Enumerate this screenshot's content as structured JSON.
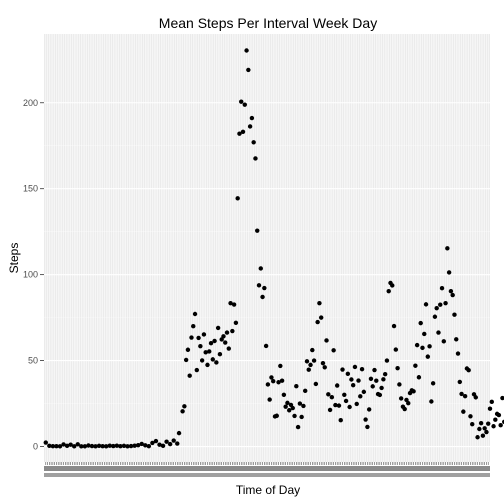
{
  "chart_data": {
    "type": "scatter",
    "title": "Mean Steps Per Interval Week Day",
    "xlabel": "Time of Day",
    "ylabel": "Steps",
    "y_ticks": [
      0,
      50,
      100,
      150,
      200
    ],
    "ylim": [
      -9,
      240
    ],
    "x_tick_labels_legible": false,
    "grid": true,
    "point_color": "#000000",
    "panel_background": "#ebebeb",
    "gridline_color": "#ffffff",
    "x_unit": "interval index (5-minute intervals, 0-287)",
    "points": [
      [
        0,
        2.3
      ],
      [
        2,
        0.4
      ],
      [
        4,
        0.2
      ],
      [
        6,
        0.2
      ],
      [
        8,
        0.1
      ],
      [
        10,
        1.2
      ],
      [
        12,
        0.4
      ],
      [
        14,
        1.1
      ],
      [
        16,
        0.1
      ],
      [
        18,
        1.3
      ],
      [
        20,
        0.1
      ],
      [
        22,
        0.1
      ],
      [
        24,
        0.6
      ],
      [
        26,
        0.3
      ],
      [
        28,
        0.1
      ],
      [
        30,
        0.4
      ],
      [
        32,
        0.2
      ],
      [
        34,
        0.1
      ],
      [
        36,
        0.5
      ],
      [
        38,
        0.3
      ],
      [
        40,
        0.5
      ],
      [
        42,
        0.2
      ],
      [
        44,
        0.4
      ],
      [
        46,
        0.1
      ],
      [
        48,
        0.3
      ],
      [
        50,
        0.5
      ],
      [
        52,
        0.8
      ],
      [
        54,
        1.5
      ],
      [
        56,
        0.7
      ],
      [
        58,
        0.2
      ],
      [
        60,
        2.1
      ],
      [
        62,
        3.2
      ],
      [
        64,
        1.1
      ],
      [
        66,
        0.4
      ],
      [
        68,
        2.8
      ],
      [
        70,
        1.4
      ],
      [
        72,
        3.5
      ],
      [
        74,
        1.7
      ],
      [
        75,
        7.8
      ],
      [
        77,
        20.5
      ],
      [
        78,
        23.4
      ],
      [
        79,
        50.4
      ],
      [
        80,
        56.3
      ],
      [
        81,
        41.2
      ],
      [
        82,
        63.4
      ],
      [
        83,
        70.0
      ],
      [
        84,
        77.1
      ],
      [
        85,
        44.5
      ],
      [
        86,
        63.2
      ],
      [
        87,
        58.4
      ],
      [
        88,
        50.1
      ],
      [
        89,
        65.2
      ],
      [
        90,
        54.8
      ],
      [
        91,
        47.5
      ],
      [
        92,
        55.3
      ],
      [
        93,
        60.1
      ],
      [
        94,
        50.7
      ],
      [
        95,
        61.4
      ],
      [
        96,
        48.9
      ],
      [
        97,
        69.0
      ],
      [
        98,
        53.7
      ],
      [
        99,
        62.3
      ],
      [
        100,
        64.1
      ],
      [
        101,
        60.5
      ],
      [
        102,
        66.3
      ],
      [
        103,
        57.0
      ],
      [
        104,
        83.4
      ],
      [
        105,
        67.2
      ],
      [
        106,
        82.6
      ],
      [
        107,
        72.0
      ],
      [
        108,
        144.4
      ],
      [
        109,
        182.0
      ],
      [
        110,
        200.6
      ],
      [
        111,
        183.1
      ],
      [
        112,
        198.9
      ],
      [
        113,
        230.4
      ],
      [
        114,
        219.1
      ],
      [
        115,
        186.2
      ],
      [
        116,
        191.1
      ],
      [
        117,
        177.0
      ],
      [
        118,
        167.6
      ],
      [
        119,
        125.6
      ],
      [
        120,
        93.8
      ],
      [
        121,
        103.6
      ],
      [
        122,
        87.0
      ],
      [
        123,
        92.2
      ],
      [
        124,
        58.5
      ],
      [
        125,
        36.1
      ],
      [
        126,
        27.3
      ],
      [
        127,
        40.2
      ],
      [
        128,
        38.0
      ],
      [
        129,
        17.5
      ],
      [
        130,
        17.9
      ],
      [
        131,
        37.4
      ],
      [
        132,
        46.9
      ],
      [
        133,
        38.3
      ],
      [
        134,
        30.1
      ],
      [
        135,
        23.2
      ],
      [
        136,
        25.4
      ],
      [
        137,
        21.1
      ],
      [
        138,
        24.2
      ],
      [
        139,
        22.4
      ],
      [
        140,
        17.8
      ],
      [
        141,
        35.1
      ],
      [
        142,
        11.3
      ],
      [
        143,
        25.0
      ],
      [
        144,
        17.2
      ],
      [
        145,
        23.6
      ],
      [
        146,
        32.4
      ],
      [
        147,
        49.6
      ],
      [
        148,
        44.7
      ],
      [
        149,
        47.5
      ],
      [
        150,
        56.1
      ],
      [
        151,
        50.0
      ],
      [
        152,
        36.4
      ],
      [
        153,
        72.4
      ],
      [
        154,
        83.4
      ],
      [
        155,
        75.0
      ],
      [
        156,
        48.5
      ],
      [
        157,
        46.1
      ],
      [
        158,
        61.7
      ],
      [
        159,
        30.4
      ],
      [
        160,
        21.3
      ],
      [
        161,
        28.7
      ],
      [
        162,
        56.0
      ],
      [
        163,
        24.1
      ],
      [
        164,
        35.5
      ],
      [
        165,
        23.8
      ],
      [
        166,
        15.3
      ],
      [
        167,
        44.8
      ],
      [
        168,
        30.1
      ],
      [
        169,
        26.5
      ],
      [
        170,
        42.3
      ],
      [
        171,
        23.0
      ],
      [
        172,
        39.0
      ],
      [
        173,
        35.7
      ],
      [
        174,
        46.3
      ],
      [
        175,
        24.8
      ],
      [
        176,
        38.4
      ],
      [
        177,
        29.2
      ],
      [
        178,
        45.0
      ],
      [
        179,
        31.8
      ],
      [
        180,
        15.7
      ],
      [
        181,
        11.4
      ],
      [
        182,
        21.6
      ],
      [
        183,
        39.4
      ],
      [
        184,
        35.0
      ],
      [
        185,
        44.5
      ],
      [
        186,
        38.3
      ],
      [
        187,
        30.5
      ],
      [
        188,
        30.0
      ],
      [
        189,
        34.1
      ],
      [
        190,
        39.1
      ],
      [
        191,
        42.1
      ],
      [
        192,
        50.0
      ],
      [
        193,
        90.4
      ],
      [
        194,
        95.2
      ],
      [
        195,
        93.7
      ],
      [
        196,
        70.1
      ],
      [
        197,
        56.4
      ],
      [
        198,
        45.6
      ],
      [
        199,
        36.1
      ],
      [
        200,
        28.0
      ],
      [
        201,
        23.2
      ],
      [
        202,
        21.8
      ],
      [
        203,
        27.1
      ],
      [
        204,
        25.2
      ],
      [
        205,
        31.1
      ],
      [
        206,
        32.7
      ],
      [
        207,
        32.1
      ],
      [
        208,
        47.0
      ],
      [
        209,
        59.0
      ],
      [
        210,
        40.3
      ],
      [
        211,
        71.8
      ],
      [
        212,
        57.4
      ],
      [
        213,
        65.5
      ],
      [
        214,
        82.7
      ],
      [
        215,
        52.3
      ],
      [
        216,
        58.3
      ],
      [
        217,
        26.2
      ],
      [
        218,
        36.8
      ],
      [
        219,
        75.5
      ],
      [
        220,
        80.5
      ],
      [
        221,
        66.3
      ],
      [
        222,
        82.5
      ],
      [
        223,
        92.1
      ],
      [
        224,
        61.2
      ],
      [
        225,
        83.4
      ],
      [
        226,
        115.3
      ],
      [
        227,
        101.3
      ],
      [
        228,
        90.4
      ],
      [
        229,
        88.1
      ],
      [
        230,
        76.7
      ],
      [
        231,
        62.4
      ],
      [
        232,
        54.1
      ],
      [
        233,
        37.6
      ],
      [
        234,
        30.6
      ],
      [
        235,
        20.3
      ],
      [
        236,
        29.3
      ],
      [
        237,
        45.4
      ],
      [
        238,
        44.4
      ],
      [
        239,
        17.6
      ],
      [
        240,
        13.0
      ],
      [
        241,
        30.4
      ],
      [
        242,
        28.6
      ],
      [
        243,
        5.4
      ],
      [
        244,
        10.2
      ],
      [
        245,
        13.6
      ],
      [
        246,
        6.3
      ],
      [
        247,
        10.6
      ],
      [
        248,
        8.4
      ],
      [
        249,
        13.3
      ],
      [
        250,
        22.0
      ],
      [
        251,
        26.0
      ],
      [
        252,
        11.8
      ],
      [
        253,
        15.6
      ],
      [
        254,
        19.0
      ],
      [
        255,
        18.3
      ],
      [
        256,
        12.4
      ],
      [
        257,
        28.2
      ],
      [
        258,
        14.4
      ],
      [
        259,
        13.5
      ],
      [
        260,
        17.2
      ],
      [
        261,
        9.2
      ],
      [
        262,
        6.0
      ],
      [
        263,
        3.4
      ],
      [
        264,
        1.2
      ],
      [
        265,
        6.8
      ],
      [
        266,
        10.4
      ],
      [
        267,
        9.0
      ],
      [
        268,
        12.0
      ],
      [
        269,
        3.1
      ],
      [
        270,
        0.4
      ],
      [
        271,
        2.3
      ],
      [
        272,
        3.1
      ],
      [
        273,
        0.5
      ],
      [
        274,
        3.6
      ],
      [
        275,
        0.7
      ],
      [
        276,
        0.1
      ],
      [
        277,
        1.2
      ],
      [
        278,
        1.9
      ],
      [
        279,
        2.6
      ],
      [
        280,
        3.0
      ],
      [
        281,
        1.8
      ],
      [
        282,
        2.0
      ],
      [
        283,
        0.3
      ],
      [
        284,
        0.5
      ],
      [
        285,
        2.2
      ],
      [
        286,
        1.3
      ],
      [
        287,
        1.0
      ]
    ]
  }
}
